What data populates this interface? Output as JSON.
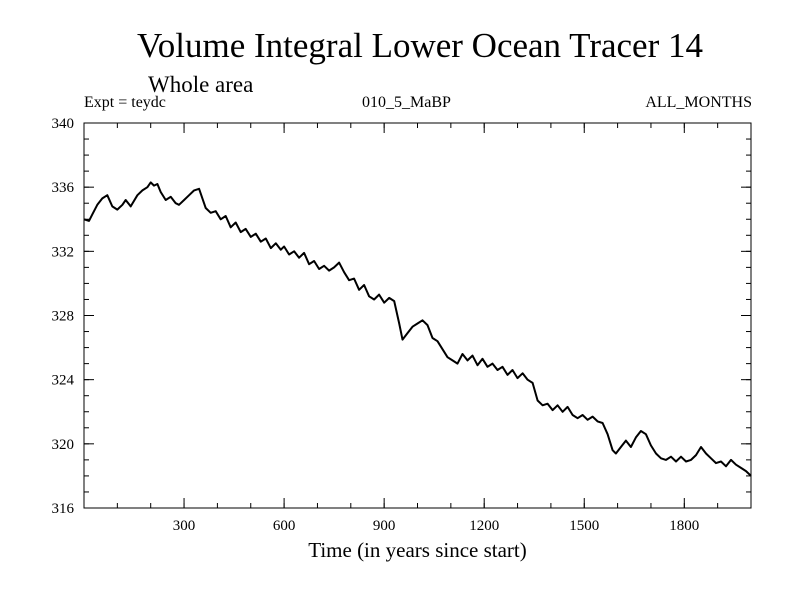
{
  "chart_data": {
    "type": "line",
    "title": "Volume Integral Lower Ocean Tracer 14",
    "subtitle": "Whole area",
    "experiment_label": "Expt = teydc",
    "run_label": "010_5_MaBP",
    "period_label": "ALL_MONTHS",
    "xlabel": "Time (in years since start)",
    "ylabel": "",
    "xlim": [
      0,
      2000
    ],
    "ylim": [
      316,
      340
    ],
    "x_major_ticks": [
      300,
      600,
      900,
      1200,
      1500,
      1800
    ],
    "x_minor_step": 100,
    "y_major_ticks": [
      316,
      320,
      324,
      328,
      332,
      336,
      340
    ],
    "y_minor_step": 1,
    "grid": false,
    "series": [
      {
        "name": "Tracer 14",
        "color": "#000000",
        "x": [
          0,
          15,
          25,
          40,
          55,
          70,
          85,
          100,
          115,
          125,
          140,
          160,
          175,
          190,
          200,
          210,
          220,
          230,
          245,
          260,
          275,
          285,
          300,
          315,
          330,
          345,
          355,
          365,
          380,
          395,
          410,
          425,
          440,
          455,
          470,
          485,
          500,
          515,
          530,
          545,
          560,
          575,
          590,
          600,
          615,
          630,
          645,
          660,
          675,
          690,
          705,
          720,
          735,
          750,
          765,
          780,
          795,
          810,
          825,
          840,
          855,
          870,
          885,
          900,
          915,
          930,
          945,
          955,
          970,
          985,
          1000,
          1015,
          1030,
          1045,
          1060,
          1075,
          1090,
          1105,
          1120,
          1135,
          1150,
          1165,
          1180,
          1195,
          1210,
          1225,
          1240,
          1255,
          1270,
          1285,
          1300,
          1315,
          1330,
          1345,
          1360,
          1375,
          1390,
          1405,
          1420,
          1435,
          1450,
          1465,
          1480,
          1495,
          1510,
          1525,
          1540,
          1555,
          1570,
          1585,
          1595,
          1610,
          1625,
          1640,
          1655,
          1670,
          1685,
          1700,
          1715,
          1730,
          1745,
          1760,
          1775,
          1790,
          1805,
          1820,
          1835,
          1850,
          1865,
          1880,
          1895,
          1910,
          1925,
          1940,
          1955,
          1970,
          1985,
          2000
        ],
        "y": [
          334.0,
          333.9,
          334.3,
          334.9,
          335.3,
          335.5,
          334.8,
          334.6,
          334.9,
          335.2,
          334.8,
          335.5,
          335.8,
          336.0,
          336.3,
          336.1,
          336.2,
          335.7,
          335.2,
          335.4,
          335.0,
          334.9,
          335.2,
          335.5,
          335.8,
          335.9,
          335.3,
          334.7,
          334.4,
          334.5,
          334.0,
          334.2,
          333.5,
          333.8,
          333.2,
          333.4,
          332.9,
          333.1,
          332.6,
          332.8,
          332.2,
          332.5,
          332.1,
          332.3,
          331.8,
          332.0,
          331.6,
          331.9,
          331.2,
          331.4,
          330.9,
          331.1,
          330.8,
          331.0,
          331.3,
          330.7,
          330.2,
          330.3,
          329.6,
          329.9,
          329.2,
          329.0,
          329.3,
          328.8,
          329.1,
          328.9,
          327.5,
          326.5,
          326.9,
          327.3,
          327.5,
          327.7,
          327.4,
          326.6,
          326.4,
          325.9,
          325.4,
          325.2,
          325.0,
          325.6,
          325.2,
          325.5,
          324.9,
          325.3,
          324.8,
          325.0,
          324.6,
          324.8,
          324.3,
          324.6,
          324.1,
          324.4,
          324.0,
          323.8,
          322.7,
          322.4,
          322.5,
          322.1,
          322.4,
          322.0,
          322.3,
          321.8,
          321.6,
          321.8,
          321.5,
          321.7,
          321.4,
          321.3,
          320.6,
          319.6,
          319.4,
          319.8,
          320.2,
          319.8,
          320.4,
          320.8,
          320.6,
          319.9,
          319.4,
          319.1,
          319.0,
          319.2,
          318.9,
          319.2,
          318.9,
          319.0,
          319.3,
          319.8,
          319.4,
          319.1,
          318.8,
          318.9,
          318.6,
          319.0,
          318.7,
          318.5,
          318.3,
          318.0
        ]
      }
    ]
  }
}
